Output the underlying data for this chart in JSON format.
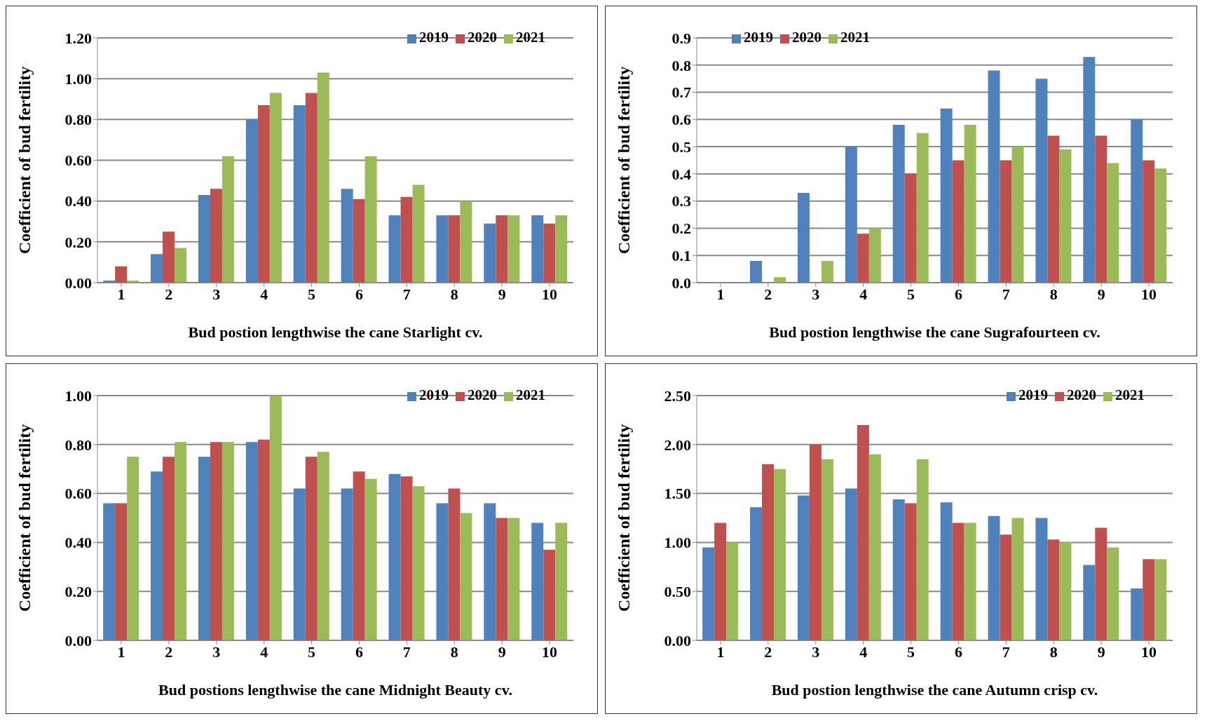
{
  "chart_data": [
    {
      "type": "bar",
      "xlabel": "Bud postion lengthwise the cane Starlight cv.",
      "ylabel": "Coefficient  of bud fertility",
      "categories": [
        "1",
        "2",
        "3",
        "4",
        "5",
        "6",
        "7",
        "8",
        "9",
        "10"
      ],
      "series": [
        {
          "name": "2019",
          "color": "#4f81bd",
          "values": [
            0.01,
            0.14,
            0.43,
            0.8,
            0.87,
            0.46,
            0.33,
            0.33,
            0.29,
            0.33
          ]
        },
        {
          "name": "2020",
          "color": "#c0504d",
          "values": [
            0.08,
            0.25,
            0.46,
            0.87,
            0.93,
            0.41,
            0.42,
            0.33,
            0.33,
            0.29
          ]
        },
        {
          "name": "2021",
          "color": "#9bbb59",
          "values": [
            0.01,
            0.17,
            0.62,
            0.93,
            1.03,
            0.62,
            0.48,
            0.4,
            0.33,
            0.33
          ]
        }
      ],
      "ylim": [
        0,
        1.2
      ],
      "yticks": [
        {
          "value": 0,
          "label": "0.00"
        },
        {
          "value": 0.2,
          "label": "0.20"
        },
        {
          "value": 0.4,
          "label": "0.40"
        },
        {
          "value": 0.6,
          "label": "0.60"
        },
        {
          "value": 0.8,
          "label": "0.80"
        },
        {
          "value": 1,
          "label": "1.00"
        },
        {
          "value": 1.2,
          "label": "1.20"
        }
      ],
      "grid": "y",
      "legend": "top right"
    },
    {
      "type": "bar",
      "xlabel": "Bud postion lengthwise  the cane  Sugrafourteen  cv.",
      "ylabel": "Coefficient  of bud fertility",
      "categories": [
        "1",
        "2",
        "3",
        "4",
        "5",
        "6",
        "7",
        "8",
        "9",
        "10"
      ],
      "series": [
        {
          "name": "2019",
          "color": "#4f81bd",
          "values": [
            0,
            0.08,
            0.33,
            0.5,
            0.58,
            0.64,
            0.78,
            0.75,
            0.83,
            0.6
          ]
        },
        {
          "name": "2020",
          "color": "#c0504d",
          "values": [
            0,
            0,
            0,
            0.18,
            0.4,
            0.45,
            0.45,
            0.54,
            0.54,
            0.45
          ]
        },
        {
          "name": "2021",
          "color": "#9bbb59",
          "values": [
            0,
            0.02,
            0.08,
            0.2,
            0.55,
            0.58,
            0.5,
            0.49,
            0.44,
            0.42
          ]
        }
      ],
      "ylim": [
        0,
        0.9
      ],
      "yticks": [
        {
          "value": 0,
          "label": "0.0"
        },
        0.1,
        0.2,
        0.3,
        0.4,
        0.5,
        0.6,
        0.7,
        0.8,
        0.9
      ],
      "grid": "y",
      "legend": "top left"
    },
    {
      "type": "bar",
      "xlabel": "Bud postions lengthwise the cane Midnight Beauty cv.",
      "ylabel": "Coefficient  of bud fertility",
      "categories": [
        "1",
        "2",
        "3",
        "4",
        "5",
        "6",
        "7",
        "8",
        "9",
        "10"
      ],
      "series": [
        {
          "name": "2019",
          "color": "#4f81bd",
          "values": [
            0.56,
            0.69,
            0.75,
            0.81,
            0.62,
            0.62,
            0.68,
            0.56,
            0.56,
            0.48
          ]
        },
        {
          "name": "2020",
          "color": "#c0504d",
          "values": [
            0.56,
            0.75,
            0.81,
            0.82,
            0.75,
            0.69,
            0.67,
            0.62,
            0.5,
            0.37
          ]
        },
        {
          "name": "2021",
          "color": "#9bbb59",
          "values": [
            0.75,
            0.81,
            0.81,
            1.0,
            0.77,
            0.66,
            0.63,
            0.52,
            0.5,
            0.48
          ]
        }
      ],
      "ylim": [
        0,
        1
      ],
      "yticks": [
        {
          "value": 0,
          "label": "0.00"
        },
        {
          "value": 0.2,
          "label": "0.20"
        },
        {
          "value": 0.4,
          "label": "0.40"
        },
        {
          "value": 0.6,
          "label": "0.60"
        },
        {
          "value": 0.8,
          "label": "0.80"
        },
        {
          "value": 1,
          "label": "1.00"
        }
      ],
      "grid": "y",
      "legend": "top right"
    },
    {
      "type": "bar",
      "xlabel": "Bud postion lengthwise the cane Autumn crisp cv.",
      "ylabel": "Coefficient of bud fertility",
      "categories": [
        "1",
        "2",
        "3",
        "4",
        "5",
        "6",
        "7",
        "8",
        "9",
        "10"
      ],
      "series": [
        {
          "name": "2019",
          "color": "#4f81bd",
          "values": [
            0.95,
            1.36,
            1.48,
            1.55,
            1.44,
            1.41,
            1.27,
            1.25,
            0.77,
            0.53
          ]
        },
        {
          "name": "2020",
          "color": "#c0504d",
          "values": [
            1.2,
            1.8,
            2.0,
            2.2,
            1.4,
            1.2,
            1.08,
            1.03,
            1.15,
            0.83
          ]
        },
        {
          "name": "2021",
          "color": "#9bbb59",
          "values": [
            1.0,
            1.75,
            1.85,
            1.9,
            1.85,
            1.2,
            1.25,
            1.0,
            0.95,
            0.83
          ]
        }
      ],
      "ylim": [
        0,
        2.5
      ],
      "yticks": [
        {
          "value": 0,
          "label": "0.00"
        },
        {
          "value": 0.5,
          "label": "0.50"
        },
        {
          "value": 1,
          "label": "1.00"
        },
        {
          "value": 1.5,
          "label": "1.50"
        },
        {
          "value": 2,
          "label": "2.00"
        },
        {
          "value": 2.5,
          "label": "2.50"
        }
      ],
      "grid": "y",
      "legend": "top right"
    }
  ]
}
